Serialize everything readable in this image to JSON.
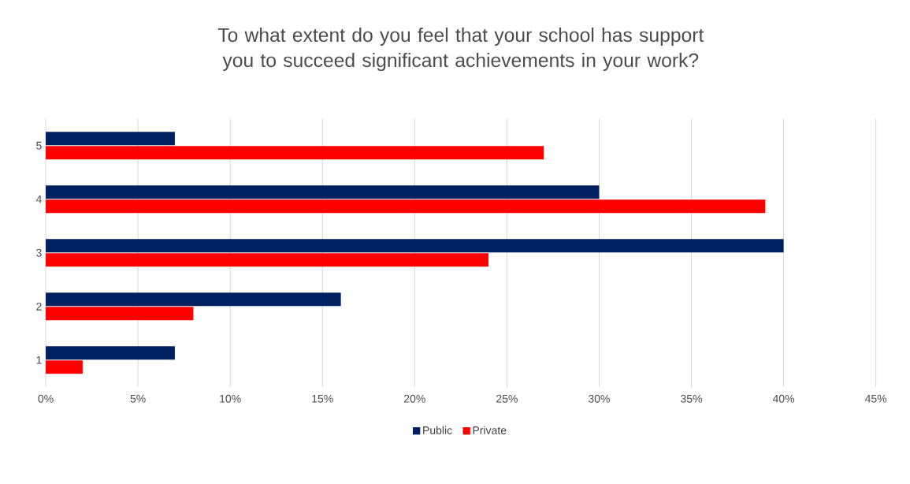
{
  "chart_data": {
    "type": "bar",
    "orientation": "horizontal",
    "title": "To what extent do you feel that your school has support you to succeed significant achievements in your work?",
    "categories": [
      "5",
      "4",
      "3",
      "2",
      "1"
    ],
    "series": [
      {
        "name": "Public",
        "color": "#002060",
        "values": [
          7,
          30,
          40,
          16,
          7
        ]
      },
      {
        "name": "Private",
        "color": "#ff0000",
        "values": [
          27,
          39,
          24,
          8,
          2
        ]
      }
    ],
    "xlim": [
      0,
      45
    ],
    "xticks": [
      {
        "value": 0,
        "label": "0%"
      },
      {
        "value": 5,
        "label": "5%"
      },
      {
        "value": 10,
        "label": "10%"
      },
      {
        "value": 15,
        "label": "15%"
      },
      {
        "value": 20,
        "label": "20%"
      },
      {
        "value": 25,
        "label": "25%"
      },
      {
        "value": 30,
        "label": "30%"
      },
      {
        "value": 35,
        "label": "35%"
      },
      {
        "value": 40,
        "label": "40%"
      },
      {
        "value": 45,
        "label": "45%"
      }
    ],
    "grid": "x",
    "legend": "bottom"
  }
}
